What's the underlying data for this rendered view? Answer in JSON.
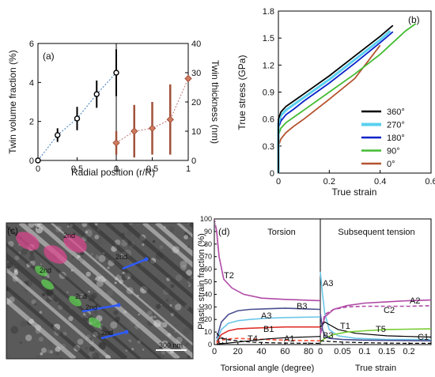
{
  "panels": {
    "a": "(a)",
    "b": "(b)",
    "c": "(c)",
    "d": "(d)"
  },
  "colors": {
    "twin_thickness": "#a0523a",
    "deg360": "#000000",
    "deg270": "#5ad0f0",
    "deg180": "#0a22c8",
    "deg90": "#44bb33",
    "deg0": "#b5532e",
    "T2": "#b04aa5",
    "B3": "#4a4f8f",
    "A3": "#6cc7e8",
    "B1": "#e0302a",
    "T4": "#ff4f3a",
    "A1": "#000000",
    "C1": "#000000",
    "A2": "#b04aa5",
    "C2": "#b04aa5",
    "T1": "#000000",
    "T5": "#77cc33"
  },
  "micrograph": {
    "scale_bar": "300 nm",
    "labels": [
      "2nd",
      "2nd",
      "2nd",
      "2nd",
      "2nd",
      "2nd"
    ]
  },
  "chart_data": [
    {
      "id": "a",
      "type": "scatter",
      "xlabel": "Radial position (r/R)",
      "ylabel_left": "Twin volume fraction (%)",
      "ylabel_right": "Twin thickness (nm)",
      "left_xticks": [
        "0",
        "0.5",
        "1"
      ],
      "right_xticks": [
        "0",
        "0.5",
        "1"
      ],
      "left_yticks": [
        "0",
        "2",
        "4",
        "6"
      ],
      "right_yticks": [
        "0",
        "10",
        "20",
        "30",
        "40"
      ],
      "left_xlim": [
        0,
        1
      ],
      "left_ylim": [
        0,
        6
      ],
      "right_xlim": [
        0,
        1
      ],
      "right_ylim": [
        0,
        40
      ],
      "volume_fraction": {
        "x": [
          0,
          0.25,
          0.5,
          0.75,
          1.0
        ],
        "y": [
          0,
          1.3,
          2.15,
          3.4,
          4.5
        ],
        "err": [
          0.1,
          0.35,
          0.6,
          0.7,
          1.2
        ]
      },
      "twin_thickness": {
        "x": [
          0,
          0.25,
          0.5,
          0.75,
          1.0
        ],
        "y": [
          6,
          10,
          11,
          14,
          28
        ],
        "err": [
          4,
          9,
          9,
          12,
          1
        ]
      }
    },
    {
      "id": "b",
      "type": "line",
      "xlabel": "True strain",
      "ylabel": "True stress (GPa)",
      "xticks": [
        "0",
        "0.2",
        "0.4",
        "0.6"
      ],
      "yticks": [
        "0",
        "0.3",
        "0.6",
        "0.9",
        "1.2",
        "1.5",
        "1.8"
      ],
      "xlim": [
        0,
        0.6
      ],
      "ylim": [
        0,
        1.8
      ],
      "series": [
        {
          "name": "360°",
          "x": [
            0,
            0.0,
            0.01,
            0.03,
            0.06,
            0.1,
            0.2,
            0.3,
            0.4,
            0.45
          ],
          "y": [
            0,
            0.6,
            0.68,
            0.74,
            0.8,
            0.88,
            1.08,
            1.3,
            1.52,
            1.64
          ]
        },
        {
          "name": "270°",
          "x": [
            0,
            0.0,
            0.01,
            0.03,
            0.06,
            0.1,
            0.2,
            0.3,
            0.4,
            0.44
          ],
          "y": [
            0,
            0.55,
            0.64,
            0.7,
            0.76,
            0.84,
            1.04,
            1.26,
            1.48,
            1.58
          ]
        },
        {
          "name": "180°",
          "x": [
            0,
            0.0,
            0.01,
            0.03,
            0.06,
            0.1,
            0.2,
            0.3,
            0.4,
            0.45
          ],
          "y": [
            0,
            0.5,
            0.58,
            0.65,
            0.71,
            0.8,
            1.0,
            1.22,
            1.45,
            1.57
          ]
        },
        {
          "name": "90°",
          "x": [
            0,
            0.0,
            0.01,
            0.03,
            0.06,
            0.1,
            0.2,
            0.3,
            0.4,
            0.5,
            0.54
          ],
          "y": [
            0,
            0.42,
            0.5,
            0.56,
            0.62,
            0.7,
            0.9,
            1.1,
            1.32,
            1.58,
            1.66
          ]
        },
        {
          "name": "0°",
          "x": [
            0,
            0.0,
            0.01,
            0.03,
            0.06,
            0.1,
            0.2,
            0.3,
            0.4
          ],
          "y": [
            0,
            0.3,
            0.38,
            0.45,
            0.52,
            0.6,
            0.82,
            1.05,
            1.42
          ]
        }
      ]
    },
    {
      "id": "d",
      "type": "line",
      "ylabel": "Plastic strain fraction (%)",
      "left_title": "Torsion",
      "right_title": "Subsequent tension",
      "left_xlabel": "Torsional angle (degree)",
      "right_xlabel": "True strain",
      "left_xticks": [
        "0",
        "20",
        "40",
        "60",
        "80"
      ],
      "right_xticks": [
        "0",
        "0.05",
        "0.1",
        "0.15",
        "0.2"
      ],
      "yticks": [
        "0",
        "10",
        "20",
        "30",
        "40",
        "50",
        "60",
        "70",
        "80",
        "90",
        "100"
      ],
      "left_xlim": [
        0,
        90
      ],
      "right_xlim": [
        0,
        0.25
      ],
      "ylim": [
        0,
        100
      ],
      "left_series": [
        {
          "name": "T2",
          "x": [
            1,
            2,
            4,
            8,
            15,
            25,
            40,
            60,
            90
          ],
          "y": [
            95,
            90,
            70,
            52,
            45,
            40,
            37,
            36,
            35
          ],
          "dotted_until": 6
        },
        {
          "name": "B3",
          "x": [
            2,
            6,
            12,
            20,
            30,
            45,
            60,
            90
          ],
          "y": [
            5,
            18,
            24,
            27,
            28,
            28.5,
            29,
            28
          ]
        },
        {
          "name": "A3",
          "x": [
            2,
            6,
            12,
            20,
            30,
            45,
            60,
            90
          ],
          "y": [
            3,
            12,
            17,
            19,
            20,
            21,
            21.5,
            22
          ]
        },
        {
          "name": "B1",
          "x": [
            2,
            6,
            12,
            20,
            30,
            45,
            60,
            90
          ],
          "y": [
            2,
            8,
            11,
            12.5,
            13,
            13.5,
            14,
            14
          ]
        },
        {
          "name": "T4",
          "x": [
            2,
            6,
            12,
            20,
            30,
            45,
            60,
            90
          ],
          "y": [
            1,
            3.5,
            4.5,
            5,
            4.5,
            4,
            3.5,
            3
          ],
          "dashed": true
        },
        {
          "name": "A1",
          "x": [
            2,
            10,
            20,
            30,
            45,
            60,
            90
          ],
          "y": [
            0.5,
            1,
            2,
            3,
            4.5,
            5.5,
            6.5
          ]
        },
        {
          "name": "C1",
          "x": [
            2,
            5,
            10,
            20,
            30,
            45,
            60,
            90
          ],
          "y": [
            9,
            6,
            4,
            3,
            2,
            1.5,
            1.2,
            1
          ],
          "dashed": true
        }
      ],
      "right_series": [
        {
          "name": "A3",
          "x": [
            0,
            0.005,
            0.01,
            0.02,
            0.04,
            0.08,
            0.15,
            0.25
          ],
          "y": [
            58,
            40,
            25,
            12,
            7,
            5,
            4,
            4
          ]
        },
        {
          "name": "A2",
          "x": [
            0,
            0.01,
            0.03,
            0.06,
            0.1,
            0.15,
            0.2,
            0.25
          ],
          "y": [
            8,
            22,
            28,
            31,
            33,
            34,
            35,
            35.5
          ]
        },
        {
          "name": "C2",
          "x": [
            0,
            0.01,
            0.03,
            0.06,
            0.1,
            0.15,
            0.2,
            0.25
          ],
          "y": [
            10,
            24,
            28,
            30,
            30.5,
            30.5,
            30.5,
            31
          ],
          "dashed": true
        },
        {
          "name": "T1",
          "x": [
            0,
            0.01,
            0.02,
            0.04,
            0.08,
            0.15,
            0.25
          ],
          "y": [
            14,
            18,
            16,
            12,
            9,
            7,
            6
          ]
        },
        {
          "name": "T5",
          "x": [
            0,
            0.01,
            0.03,
            0.06,
            0.1,
            0.15,
            0.25
          ],
          "y": [
            2,
            5,
            8,
            10,
            11,
            12,
            12.5
          ]
        },
        {
          "name": "B3",
          "x": [
            0,
            0.005,
            0.01,
            0.02,
            0.05,
            0.1,
            0.25
          ],
          "y": [
            25,
            12,
            7,
            5,
            4,
            3.5,
            3
          ]
        },
        {
          "name": "C1",
          "x": [
            0,
            0.02,
            0.05,
            0.1,
            0.15,
            0.2,
            0.25
          ],
          "y": [
            3,
            2.5,
            2,
            1.5,
            1.2,
            1,
            1
          ],
          "dashed": true
        }
      ]
    }
  ]
}
